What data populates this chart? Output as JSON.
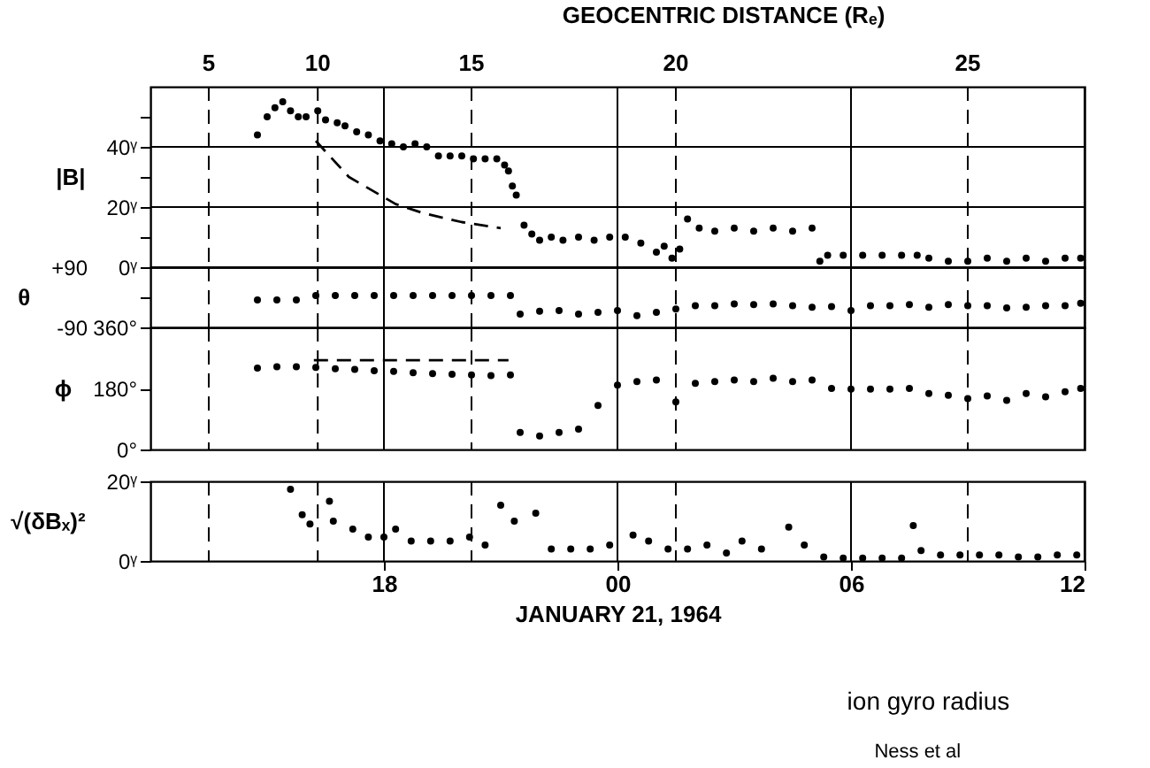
{
  "chart_data": [
    {
      "type": "scatter",
      "title": "GEOCENTRIC DISTANCE (Rₑ)",
      "ylabel": "|B|",
      "xlim": [
        "1964-01-20T12:00",
        "1964-01-21T12:00"
      ],
      "xticks": [
        {
          "value": "1964-01-20T18:00",
          "label": null
        },
        {
          "value": "1964-01-21T00:00",
          "label": null
        },
        {
          "value": "1964-01-21T06:00",
          "label": null
        },
        {
          "value": "1964-01-21T12:00",
          "label": null
        }
      ],
      "ylim": [
        0,
        60
      ],
      "yticks": [
        {
          "value": 0,
          "label": "0ᵞ"
        },
        {
          "value": 10,
          "label": null
        },
        {
          "value": 20,
          "label": "20ᵞ"
        },
        {
          "value": 30,
          "label": null
        },
        {
          "value": 40,
          "label": "40ᵞ"
        },
        {
          "value": 50,
          "label": null
        }
      ],
      "grid": true,
      "tick_labels": "y",
      "ref_lines": [
        {
          "axis": "x",
          "value": "1964-01-20T13:30",
          "label": "5",
          "line_style": "dashed"
        },
        {
          "axis": "x",
          "value": "1964-01-20T16:18",
          "label": "10",
          "line_style": "dashed"
        },
        {
          "axis": "x",
          "value": "1964-01-20T20:15",
          "label": "15",
          "line_style": "dashed"
        },
        {
          "axis": "x",
          "value": "1964-01-21T01:30",
          "label": "20",
          "line_style": "dashed"
        },
        {
          "axis": "x",
          "value": "1964-01-21T09:00",
          "label": "25",
          "line_style": "dashed"
        }
      ],
      "series": [
        {
          "color": "#000000",
          "marker": "circle",
          "x": [
            "1964-01-20T14:45",
            "1964-01-20T15:00",
            "1964-01-20T15:12",
            "1964-01-20T15:24",
            "1964-01-20T15:36",
            "1964-01-20T15:48",
            "1964-01-20T16:00",
            "1964-01-20T16:18",
            "1964-01-20T16:30",
            "1964-01-20T16:48",
            "1964-01-20T17:00",
            "1964-01-20T17:18",
            "1964-01-20T17:36",
            "1964-01-20T17:54",
            "1964-01-20T18:12",
            "1964-01-20T18:30",
            "1964-01-20T18:48",
            "1964-01-20T19:06",
            "1964-01-20T19:24",
            "1964-01-20T19:42",
            "1964-01-20T20:00",
            "1964-01-20T20:18",
            "1964-01-20T20:36",
            "1964-01-20T20:54",
            "1964-01-20T21:06",
            "1964-01-20T21:12",
            "1964-01-20T21:18",
            "1964-01-20T21:24",
            "1964-01-20T21:36",
            "1964-01-20T21:48",
            "1964-01-20T22:00",
            "1964-01-20T22:18",
            "1964-01-20T22:36",
            "1964-01-20T23:00",
            "1964-01-20T23:24",
            "1964-01-20T23:48",
            "1964-01-21T00:12",
            "1964-01-21T00:36",
            "1964-01-21T01:00",
            "1964-01-21T01:12",
            "1964-01-21T01:24",
            "1964-01-21T01:36",
            "1964-01-21T01:48",
            "1964-01-21T02:06",
            "1964-01-21T02:30",
            "1964-01-21T03:00",
            "1964-01-21T03:30",
            "1964-01-21T04:00",
            "1964-01-21T04:30",
            "1964-01-21T05:00",
            "1964-01-21T05:12",
            "1964-01-21T05:24",
            "1964-01-21T05:48",
            "1964-01-21T06:18",
            "1964-01-21T06:48",
            "1964-01-21T07:18",
            "1964-01-21T07:42",
            "1964-01-21T08:00",
            "1964-01-21T08:30",
            "1964-01-21T09:00",
            "1964-01-21T09:30",
            "1964-01-21T10:00",
            "1964-01-21T10:30",
            "1964-01-21T11:00",
            "1964-01-21T11:30",
            "1964-01-21T11:54"
          ],
          "values": [
            44,
            50,
            53,
            55,
            52,
            50,
            50,
            52,
            49,
            48,
            47,
            45,
            44,
            42,
            41,
            40,
            41,
            40,
            37,
            37,
            37,
            36,
            36,
            36,
            34,
            32,
            27,
            24,
            14,
            11,
            9,
            10,
            9,
            10,
            9,
            10,
            10,
            8,
            5,
            7,
            3,
            6,
            16,
            13,
            12,
            13,
            12,
            13,
            12,
            13,
            2,
            4,
            4,
            4,
            4,
            4,
            4,
            3,
            2,
            2,
            3,
            2,
            3,
            2,
            3,
            3
          ]
        },
        {
          "type": "line",
          "color": "#000000",
          "line_style": "dashed",
          "x": [
            "1964-01-20T16:15",
            "1964-01-20T17:06",
            "1964-01-20T18:18",
            "1964-01-20T19:00",
            "1964-01-20T20:00",
            "1964-01-20T21:00"
          ],
          "values": [
            42,
            30,
            21,
            18,
            15,
            13
          ]
        }
      ]
    },
    {
      "type": "scatter",
      "ylabel": "θ",
      "xlim": [
        "1964-01-20T12:00",
        "1964-01-21T12:00"
      ],
      "xticks": [
        {
          "value": "1964-01-20T18:00",
          "label": null
        },
        {
          "value": "1964-01-21T00:00",
          "label": null
        },
        {
          "value": "1964-01-21T06:00",
          "label": null
        },
        {
          "value": "1964-01-21T12:00",
          "label": null
        }
      ],
      "ylim": [
        -90,
        90
      ],
      "yticks": [
        {
          "value": -90,
          "label": "-90"
        },
        {
          "value": 0,
          "label": null
        },
        {
          "value": 90,
          "label": "+90"
        }
      ],
      "grid": "x",
      "tick_labels": "y",
      "ref_lines": [
        {
          "axis": "x",
          "value": "1964-01-20T13:30",
          "line_style": "dashed"
        },
        {
          "axis": "x",
          "value": "1964-01-20T16:18",
          "line_style": "dashed"
        },
        {
          "axis": "x",
          "value": "1964-01-20T20:15",
          "line_style": "dashed"
        },
        {
          "axis": "x",
          "value": "1964-01-21T01:30",
          "line_style": "dashed"
        },
        {
          "axis": "x",
          "value": "1964-01-21T09:00",
          "line_style": "dashed"
        }
      ],
      "series": [
        {
          "color": "#000000",
          "marker": "circle",
          "x": [
            "1964-01-20T14:45",
            "1964-01-20T15:15",
            "1964-01-20T15:45",
            "1964-01-20T16:15",
            "1964-01-20T16:45",
            "1964-01-20T17:15",
            "1964-01-20T17:45",
            "1964-01-20T18:15",
            "1964-01-20T18:45",
            "1964-01-20T19:15",
            "1964-01-20T19:45",
            "1964-01-20T20:15",
            "1964-01-20T20:45",
            "1964-01-20T21:15",
            "1964-01-20T21:30",
            "1964-01-20T22:00",
            "1964-01-20T22:30",
            "1964-01-20T23:00",
            "1964-01-20T23:30",
            "1964-01-21T00:00",
            "1964-01-21T00:30",
            "1964-01-21T01:00",
            "1964-01-21T01:30",
            "1964-01-21T02:00",
            "1964-01-21T02:30",
            "1964-01-21T03:00",
            "1964-01-21T03:30",
            "1964-01-21T04:00",
            "1964-01-21T04:30",
            "1964-01-21T05:00",
            "1964-01-21T05:30",
            "1964-01-21T06:00",
            "1964-01-21T06:30",
            "1964-01-21T07:00",
            "1964-01-21T07:30",
            "1964-01-21T08:00",
            "1964-01-21T08:30",
            "1964-01-21T09:00",
            "1964-01-21T09:30",
            "1964-01-21T10:00",
            "1964-01-21T10:30",
            "1964-01-21T11:00",
            "1964-01-21T11:30",
            "1964-01-21T11:54"
          ],
          "values": [
            -8,
            -8,
            -8,
            5,
            5,
            5,
            5,
            5,
            5,
            5,
            5,
            5,
            5,
            5,
            -50,
            -42,
            -40,
            -50,
            -45,
            -40,
            -55,
            -45,
            -35,
            -25,
            -25,
            -20,
            -22,
            -20,
            -25,
            -30,
            -28,
            -40,
            -25,
            -25,
            -22,
            -30,
            -22,
            -25,
            -25,
            -32,
            -30,
            -25,
            -25,
            -18
          ]
        }
      ]
    },
    {
      "type": "scatter",
      "ylabel": "ϕ",
      "xlim": [
        "1964-01-20T12:00",
        "1964-01-21T12:00"
      ],
      "xticks": [
        {
          "value": "1964-01-20T18:00",
          "label": null
        },
        {
          "value": "1964-01-21T00:00",
          "label": null
        },
        {
          "value": "1964-01-21T06:00",
          "label": null
        },
        {
          "value": "1964-01-21T12:00",
          "label": null
        }
      ],
      "ylim": [
        0,
        360
      ],
      "yticks": [
        {
          "value": 0,
          "label": "0°"
        },
        {
          "value": 180,
          "label": "180°"
        },
        {
          "value": 360,
          "label": "360°"
        }
      ],
      "grid": "x",
      "tick_labels": "y",
      "ref_lines": [
        {
          "axis": "x",
          "value": "1964-01-20T13:30",
          "line_style": "dashed"
        },
        {
          "axis": "x",
          "value": "1964-01-20T16:18",
          "line_style": "dashed"
        },
        {
          "axis": "x",
          "value": "1964-01-20T20:15",
          "line_style": "dashed"
        },
        {
          "axis": "x",
          "value": "1964-01-21T01:30",
          "line_style": "dashed"
        },
        {
          "axis": "x",
          "value": "1964-01-21T09:00",
          "line_style": "dashed"
        }
      ],
      "series": [
        {
          "color": "#000000",
          "marker": "circle",
          "x": [
            "1964-01-20T14:45",
            "1964-01-20T15:15",
            "1964-01-20T15:45",
            "1964-01-20T16:15",
            "1964-01-20T16:45",
            "1964-01-20T17:15",
            "1964-01-20T17:45",
            "1964-01-20T18:15",
            "1964-01-20T18:45",
            "1964-01-20T19:15",
            "1964-01-20T19:45",
            "1964-01-20T20:15",
            "1964-01-20T20:45",
            "1964-01-20T21:15",
            "1964-01-20T21:30",
            "1964-01-20T22:00",
            "1964-01-20T22:30",
            "1964-01-20T23:00",
            "1964-01-20T23:30",
            "1964-01-21T00:00",
            "1964-01-21T00:30",
            "1964-01-21T01:00",
            "1964-01-21T01:30",
            "1964-01-21T02:00",
            "1964-01-21T02:30",
            "1964-01-21T03:00",
            "1964-01-21T03:30",
            "1964-01-21T04:00",
            "1964-01-21T04:30",
            "1964-01-21T05:00",
            "1964-01-21T05:30",
            "1964-01-21T06:00",
            "1964-01-21T06:30",
            "1964-01-21T07:00",
            "1964-01-21T07:30",
            "1964-01-21T08:00",
            "1964-01-21T08:30",
            "1964-01-21T09:00",
            "1964-01-21T09:30",
            "1964-01-21T10:00",
            "1964-01-21T10:30",
            "1964-01-21T11:00",
            "1964-01-21T11:30",
            "1964-01-21T11:54"
          ],
          "values": [
            240,
            244,
            244,
            242,
            238,
            236,
            232,
            230,
            226,
            224,
            222,
            220,
            218,
            220,
            50,
            40,
            50,
            60,
            130,
            190,
            200,
            205,
            140,
            195,
            200,
            205,
            200,
            210,
            200,
            205,
            180,
            178,
            178,
            178,
            180,
            165,
            160,
            150,
            158,
            145,
            165,
            155,
            170,
            180
          ]
        },
        {
          "type": "line",
          "color": "#000000",
          "line_style": "dashed",
          "x": [
            "1964-01-20T16:12",
            "1964-01-20T21:12"
          ],
          "values": [
            263,
            263
          ]
        }
      ]
    },
    {
      "type": "scatter",
      "ylabel": "√(δBₓ)²",
      "xlabel": "JANUARY 21, 1964",
      "xlim": [
        "1964-01-20T12:00",
        "1964-01-21T12:00"
      ],
      "xticks": [
        {
          "value": "1964-01-20T18:00",
          "label": "18"
        },
        {
          "value": "1964-01-21T00:00",
          "label": "00"
        },
        {
          "value": "1964-01-21T06:00",
          "label": "06"
        },
        {
          "value": "1964-01-21T12:00",
          "label": "12"
        }
      ],
      "ylim": [
        0,
        20
      ],
      "yticks": [
        {
          "value": 0,
          "label": "0ᵞ"
        },
        {
          "value": 20,
          "label": "20ᵞ"
        }
      ],
      "grid": "x",
      "ref_lines": [
        {
          "axis": "x",
          "value": "1964-01-20T13:30",
          "line_style": "dashed"
        },
        {
          "axis": "x",
          "value": "1964-01-20T16:18",
          "line_style": "dashed"
        },
        {
          "axis": "x",
          "value": "1964-01-20T20:15",
          "line_style": "dashed"
        },
        {
          "axis": "x",
          "value": "1964-01-21T01:30",
          "line_style": "dashed"
        },
        {
          "axis": "x",
          "value": "1964-01-21T09:00",
          "line_style": "dashed"
        }
      ],
      "annotations": [
        "ion gyro radius",
        "Ness et al"
      ],
      "series": [
        {
          "color": "#000000",
          "marker": "circle",
          "x": [
            "1964-01-20T15:36",
            "1964-01-20T15:54",
            "1964-01-20T16:06",
            "1964-01-20T16:36",
            "1964-01-20T16:42",
            "1964-01-20T17:12",
            "1964-01-20T17:36",
            "1964-01-20T18:00",
            "1964-01-20T18:18",
            "1964-01-20T18:42",
            "1964-01-20T19:12",
            "1964-01-20T19:42",
            "1964-01-20T20:12",
            "1964-01-20T20:36",
            "1964-01-20T21:00",
            "1964-01-20T21:21",
            "1964-01-20T21:54",
            "1964-01-20T22:18",
            "1964-01-20T22:48",
            "1964-01-20T23:18",
            "1964-01-20T23:48",
            "1964-01-21T00:24",
            "1964-01-21T00:48",
            "1964-01-21T01:18",
            "1964-01-21T01:48",
            "1964-01-21T02:18",
            "1964-01-21T02:48",
            "1964-01-21T03:12",
            "1964-01-21T03:42",
            "1964-01-21T04:24",
            "1964-01-21T04:48",
            "1964-01-21T05:18",
            "1964-01-21T05:48",
            "1964-01-21T06:18",
            "1964-01-21T06:48",
            "1964-01-21T07:18",
            "1964-01-21T07:36",
            "1964-01-21T07:48",
            "1964-01-21T08:18",
            "1964-01-21T08:48",
            "1964-01-21T09:18",
            "1964-01-21T09:48",
            "1964-01-21T10:18",
            "1964-01-21T10:48",
            "1964-01-21T11:18",
            "1964-01-21T11:48"
          ],
          "values": [
            18,
            11.6,
            9.3,
            15,
            10,
            8,
            6,
            6,
            8,
            5,
            5,
            5,
            6,
            4,
            14,
            10,
            12,
            3,
            3,
            3,
            4,
            6.5,
            5,
            3,
            3,
            4,
            2,
            5,
            3,
            8.5,
            4,
            1,
            0.7,
            0.7,
            0.7,
            0.7,
            8.9,
            2.6,
            1.5,
            1.5,
            1.5,
            1.5,
            1,
            1,
            1.5,
            1.5
          ]
        }
      ]
    }
  ]
}
